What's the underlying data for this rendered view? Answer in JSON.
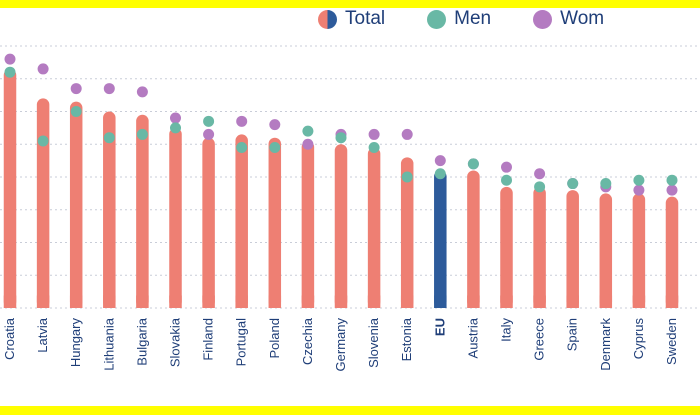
{
  "legend": {
    "total_label": "Total",
    "men_label": "Men",
    "women_label": "Wom"
  },
  "colors": {
    "total": "#ee7f73",
    "eu": "#2d5b9b",
    "men": "#69b8a5",
    "women": "#b47bc1",
    "grid": "#c9cdd8",
    "text": "#1f3e78"
  },
  "chart_data": {
    "type": "bar",
    "categories": [
      "Croatia",
      "Latvia",
      "Hungary",
      "Lithuania",
      "Bulgaria",
      "Slovakia",
      "Finland",
      "Portugal",
      "Poland",
      "Czechia",
      "Germany",
      "Slovenia",
      "Estonia",
      "EU",
      "Austria",
      "Italy",
      "Greece",
      "Spain",
      "Denmark",
      "Cyprus",
      "Sweden"
    ],
    "highlight": "EU",
    "series": [
      {
        "name": "Total",
        "values": [
          73.0,
          64.0,
          63.0,
          60.0,
          59.0,
          55.0,
          52.0,
          53.0,
          52.0,
          51.0,
          50.0,
          49.0,
          46.0,
          42.0,
          42.0,
          37.0,
          37.0,
          36.0,
          35.0,
          35.0,
          34.0
        ]
      },
      {
        "name": "Men",
        "values": [
          72.0,
          51.0,
          60.0,
          52.0,
          53.0,
          55.0,
          57.0,
          49.0,
          49.0,
          54.0,
          52.0,
          49.0,
          40.0,
          41.0,
          44.0,
          39.0,
          37.0,
          38.0,
          38.0,
          39.0,
          39.0
        ]
      },
      {
        "name": "Women",
        "values": [
          76.0,
          73.0,
          67.0,
          67.0,
          66.0,
          58.0,
          53.0,
          57.0,
          56.0,
          50.0,
          53.0,
          53.0,
          53.0,
          45.0,
          44.0,
          43.0,
          41.0,
          38.0,
          37.0,
          36.0,
          36.0
        ]
      }
    ],
    "ylim": [
      0,
      80
    ],
    "grid": true
  }
}
